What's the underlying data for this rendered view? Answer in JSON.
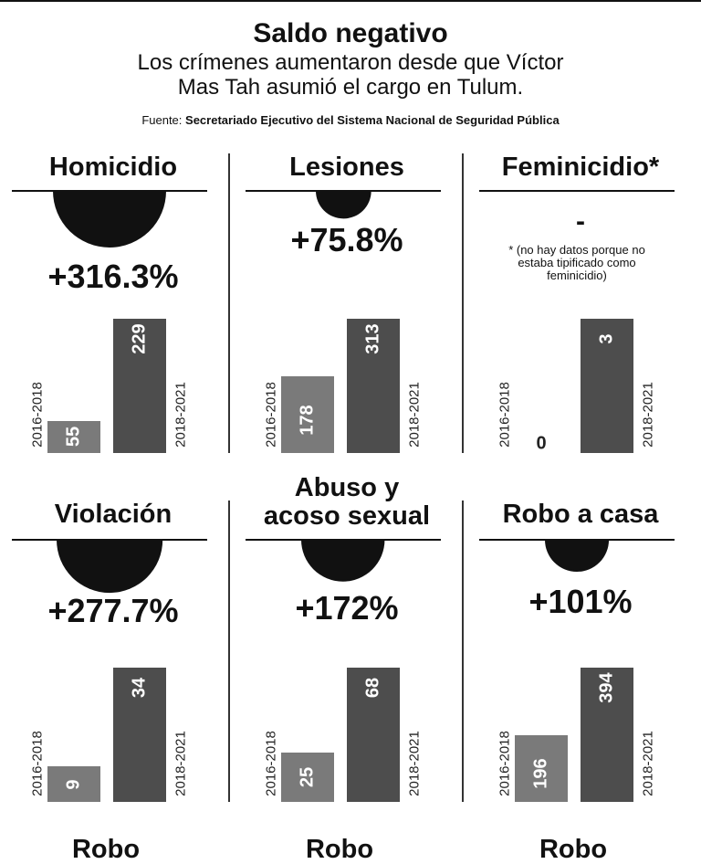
{
  "title": "Saldo negativo",
  "subtitle": "Los crímenes aumentaron desde que Víctor Mas Tah asumió el cargo en Tulum.",
  "source_label": "Fuente:",
  "source_name": "Secretariado Ejecutivo del Sistema Nacional de Seguridad Pública",
  "colors": {
    "bubble": "#111111",
    "bar_2016_2018": "#7a7a7a",
    "bar_2018_2021": "#4d4d4d"
  },
  "chart_data": [
    {
      "type": "bar",
      "title": "Homicidio",
      "change": "+316.3%",
      "categories": [
        "2016-2018",
        "2018-2021"
      ],
      "values": [
        55,
        229
      ],
      "labels": [
        "55",
        "229"
      ],
      "ylim": [
        0,
        229
      ]
    },
    {
      "type": "bar",
      "title": "Lesiones",
      "change": "+75.8%",
      "categories": [
        "2016-2018",
        "2018-2021"
      ],
      "values": [
        178,
        313
      ],
      "labels": [
        "178",
        "313"
      ],
      "ylim": [
        0,
        313
      ]
    },
    {
      "type": "bar",
      "title": "Feminicidio*",
      "change": "-",
      "note": "* (no hay datos porque no estaba tipificado como feminicidio)",
      "categories": [
        "2016-2018",
        "2018-2021"
      ],
      "values": [
        0,
        3
      ],
      "labels": [
        "0",
        "3"
      ],
      "ylim": [
        0,
        3
      ]
    },
    {
      "type": "bar",
      "title": "Violación",
      "change": "+277.7%",
      "categories": [
        "2016-2018",
        "2018-2021"
      ],
      "values": [
        9,
        34
      ],
      "labels": [
        "9",
        "34"
      ],
      "ylim": [
        0,
        34
      ]
    },
    {
      "type": "bar",
      "title": "Abuso y acoso sexual",
      "change": "+172%",
      "categories": [
        "2016-2018",
        "2018-2021"
      ],
      "values": [
        25,
        68
      ],
      "labels": [
        "25",
        "68"
      ],
      "ylim": [
        0,
        68
      ]
    },
    {
      "type": "bar",
      "title": "Robo a casa",
      "change": "+101%",
      "categories": [
        "2016-2018",
        "2018-2021"
      ],
      "values": [
        196,
        394
      ],
      "labels": [
        "196",
        "394"
      ],
      "ylim": [
        0,
        394
      ]
    }
  ],
  "bottom_row_titles": [
    "Robo",
    "Robo",
    "Robo"
  ]
}
